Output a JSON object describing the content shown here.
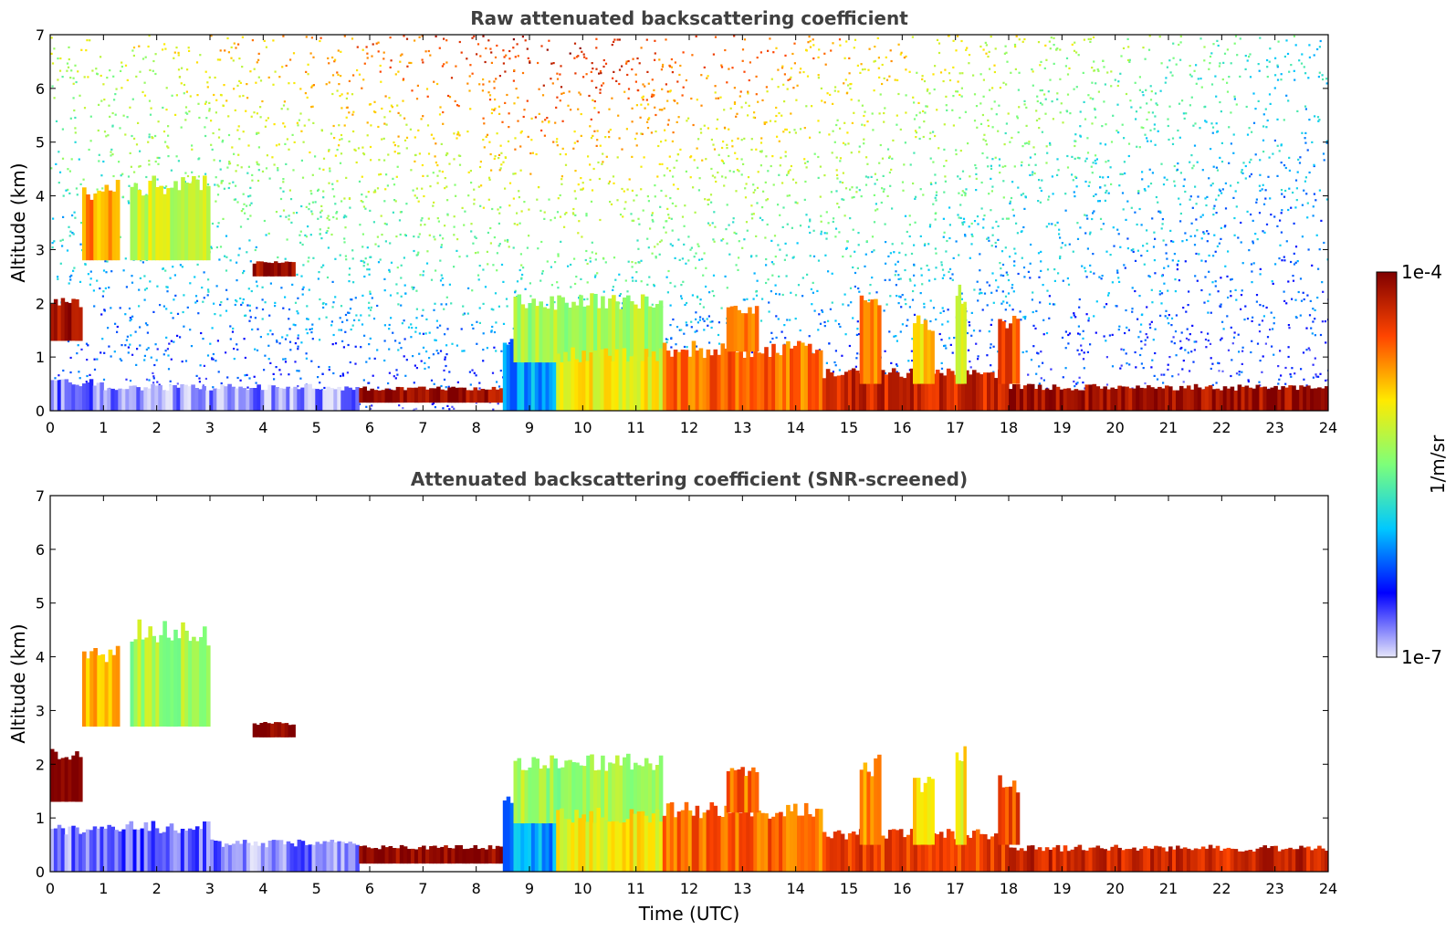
{
  "chart_data": [
    {
      "type": "heatmap",
      "title": "Raw attenuated backscattering coefficient",
      "xlabel": "",
      "ylabel": "Altitude (km)",
      "xlim": [
        0,
        24
      ],
      "ylim": [
        0,
        7
      ],
      "x_ticks": [
        "0",
        "1",
        "2",
        "3",
        "4",
        "5",
        "6",
        "7",
        "8",
        "9",
        "10",
        "11",
        "12",
        "13",
        "14",
        "15",
        "16",
        "17",
        "18",
        "19",
        "20",
        "21",
        "22",
        "23",
        "24"
      ],
      "y_ticks": [
        "0",
        "1",
        "2",
        "3",
        "4",
        "5",
        "6",
        "7"
      ],
      "noise": true,
      "features": [
        {
          "x": [
            0.0,
            1.0
          ],
          "y": [
            0.0,
            0.6
          ],
          "level": 0.08
        },
        {
          "x": [
            1.0,
            5.8
          ],
          "y": [
            0.0,
            0.5
          ],
          "level": 0.06
        },
        {
          "x": [
            0.0,
            0.6
          ],
          "y": [
            1.3,
            2.1
          ],
          "level": 0.95
        },
        {
          "x": [
            0.6,
            1.3
          ],
          "y": [
            2.8,
            4.3
          ],
          "level": 0.75
        },
        {
          "x": [
            1.5,
            3.0
          ],
          "y": [
            2.8,
            4.4
          ],
          "level": 0.6
        },
        {
          "x": [
            3.8,
            4.6
          ],
          "y": [
            2.5,
            2.8
          ],
          "level": 0.98
        },
        {
          "x": [
            5.8,
            8.5
          ],
          "y": [
            0.15,
            0.45
          ],
          "level": 0.97
        },
        {
          "x": [
            8.5,
            9.5
          ],
          "y": [
            0.0,
            1.5
          ],
          "level": 0.3
        },
        {
          "x": [
            8.7,
            11.5
          ],
          "y": [
            0.9,
            2.2
          ],
          "level": 0.55
        },
        {
          "x": [
            9.5,
            11.5
          ],
          "y": [
            0.0,
            1.2
          ],
          "level": 0.65
        },
        {
          "x": [
            11.5,
            14.5
          ],
          "y": [
            0.0,
            1.3
          ],
          "level": 0.8
        },
        {
          "x": [
            12.7,
            13.3
          ],
          "y": [
            1.1,
            2.0
          ],
          "level": 0.8
        },
        {
          "x": [
            14.5,
            18.0
          ],
          "y": [
            0.0,
            0.8
          ],
          "level": 0.9
        },
        {
          "x": [
            15.2,
            15.6
          ],
          "y": [
            0.5,
            2.2
          ],
          "level": 0.75
        },
        {
          "x": [
            16.2,
            16.6
          ],
          "y": [
            0.5,
            1.8
          ],
          "level": 0.7
        },
        {
          "x": [
            17.0,
            17.2
          ],
          "y": [
            0.5,
            2.4
          ],
          "level": 0.65
        },
        {
          "x": [
            17.8,
            18.2
          ],
          "y": [
            0.5,
            1.8
          ],
          "level": 0.85
        },
        {
          "x": [
            18.0,
            24.0
          ],
          "y": [
            0.0,
            0.5
          ],
          "level": 0.96
        }
      ]
    },
    {
      "type": "heatmap",
      "title": "Attenuated backscattering coefficient (SNR-screened)",
      "xlabel": "Time (UTC)",
      "ylabel": "Altitude (km)",
      "xlim": [
        0,
        24
      ],
      "ylim": [
        0,
        7
      ],
      "x_ticks": [
        "0",
        "1",
        "2",
        "3",
        "4",
        "5",
        "6",
        "7",
        "8",
        "9",
        "10",
        "11",
        "12",
        "13",
        "14",
        "15",
        "16",
        "17",
        "18",
        "19",
        "20",
        "21",
        "22",
        "23",
        "24"
      ],
      "y_ticks": [
        "0",
        "1",
        "2",
        "3",
        "4",
        "5",
        "6",
        "7"
      ],
      "noise": false,
      "features": [
        {
          "x": [
            0.0,
            1.0
          ],
          "y": [
            0.0,
            0.9
          ],
          "level": 0.08
        },
        {
          "x": [
            1.0,
            3.0
          ],
          "y": [
            0.0,
            0.95
          ],
          "level": 0.1
        },
        {
          "x": [
            3.0,
            5.8
          ],
          "y": [
            0.0,
            0.6
          ],
          "level": 0.07
        },
        {
          "x": [
            0.0,
            0.6
          ],
          "y": [
            1.3,
            2.3
          ],
          "level": 0.99
        },
        {
          "x": [
            0.6,
            1.3
          ],
          "y": [
            2.7,
            4.3
          ],
          "level": 0.7
        },
        {
          "x": [
            1.5,
            3.0
          ],
          "y": [
            2.7,
            4.7
          ],
          "level": 0.55
        },
        {
          "x": [
            3.8,
            4.6
          ],
          "y": [
            2.5,
            2.8
          ],
          "level": 0.99
        },
        {
          "x": [
            5.8,
            8.5
          ],
          "y": [
            0.15,
            0.5
          ],
          "level": 0.99
        },
        {
          "x": [
            8.5,
            9.5
          ],
          "y": [
            0.0,
            1.5
          ],
          "level": 0.3
        },
        {
          "x": [
            8.7,
            11.5
          ],
          "y": [
            0.9,
            2.2
          ],
          "level": 0.55
        },
        {
          "x": [
            9.5,
            11.5
          ],
          "y": [
            0.0,
            1.2
          ],
          "level": 0.65
        },
        {
          "x": [
            11.5,
            14.5
          ],
          "y": [
            0.0,
            1.3
          ],
          "level": 0.8
        },
        {
          "x": [
            12.7,
            13.3
          ],
          "y": [
            1.1,
            2.0
          ],
          "level": 0.8
        },
        {
          "x": [
            14.5,
            18.0
          ],
          "y": [
            0.0,
            0.8
          ],
          "level": 0.85
        },
        {
          "x": [
            15.2,
            15.6
          ],
          "y": [
            0.5,
            2.2
          ],
          "level": 0.75
        },
        {
          "x": [
            16.2,
            16.6
          ],
          "y": [
            0.5,
            1.8
          ],
          "level": 0.7
        },
        {
          "x": [
            17.0,
            17.2
          ],
          "y": [
            0.5,
            2.4
          ],
          "level": 0.65
        },
        {
          "x": [
            17.8,
            18.2
          ],
          "y": [
            0.5,
            1.8
          ],
          "level": 0.85
        },
        {
          "x": [
            18.0,
            24.0
          ],
          "y": [
            0.0,
            0.5
          ],
          "level": 0.9
        }
      ]
    }
  ],
  "colorbar": {
    "label": "1/m/sr",
    "max_label": "1e-4",
    "min_label": "1e-7",
    "colormap": "jet",
    "colors": [
      "#e6e6fa",
      "#0000ff",
      "#00c8ff",
      "#7dff7a",
      "#ffea00",
      "#ff4500",
      "#800000"
    ]
  }
}
